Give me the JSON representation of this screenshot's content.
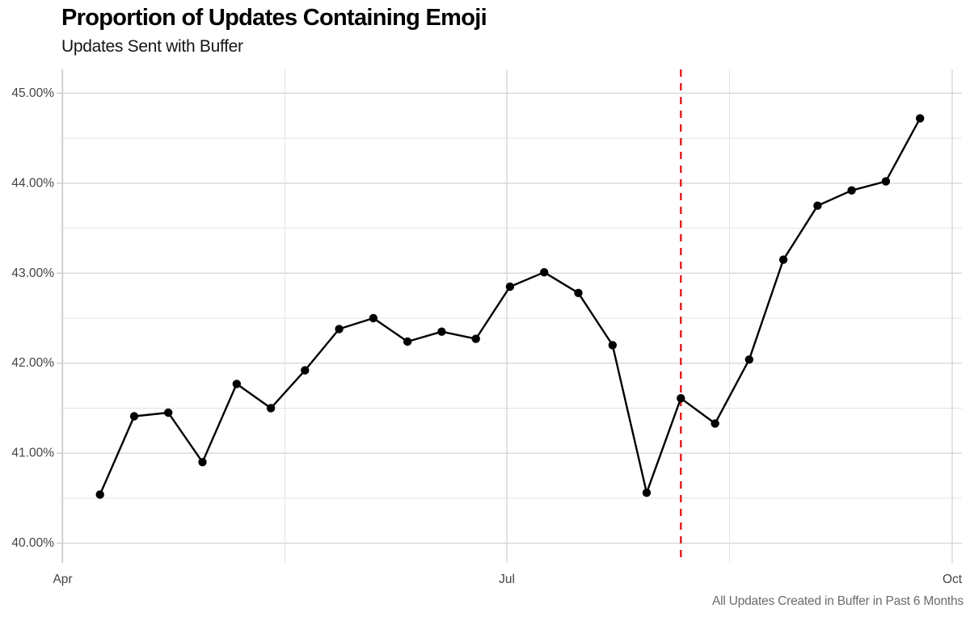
{
  "chart_data": {
    "type": "line",
    "title": "Proportion of Updates Containing Emoji",
    "subtitle": "Updates Sent with Buffer",
    "caption": "All Updates Created in Buffer in Past 6 Months",
    "x_axis": {
      "tick_labels": [
        "Apr",
        "Jul",
        "Oct"
      ],
      "unit": "week",
      "n_points": 25
    },
    "y_axis": {
      "ticks": [
        40,
        41,
        42,
        43,
        44,
        45
      ],
      "tick_labels": [
        "40.00%",
        "41.00%",
        "42.00%",
        "43.00%",
        "44.00%",
        "45.00%"
      ],
      "minor_ticks": [
        40.5,
        41.5,
        42.5,
        43.5,
        44.5
      ],
      "ylim": [
        39.9,
        45.25
      ]
    },
    "series": [
      {
        "name": "updates_with_emoji_pct",
        "values": [
          40.54,
          41.41,
          41.45,
          40.9,
          41.77,
          41.5,
          41.92,
          42.38,
          42.5,
          42.24,
          42.35,
          42.27,
          42.85,
          43.01,
          42.78,
          42.2,
          40.56,
          41.61,
          41.33,
          42.04,
          43.15,
          43.75,
          43.92,
          44.02,
          44.72
        ]
      }
    ],
    "reference_line": {
      "orientation": "vertical",
      "style": "dashed",
      "at_point_index": 17,
      "color": "#e01b1b"
    },
    "grid": true,
    "legend": false,
    "colors": {
      "line": "#000000",
      "points": "#000000",
      "grid_major": "#d3d3d3",
      "grid_minor": "#e4e4e4",
      "axis_line": "#c9c9c9",
      "reference": "#e01b1b",
      "tick_text": "#444444",
      "caption_text": "#6b6b6b"
    }
  }
}
